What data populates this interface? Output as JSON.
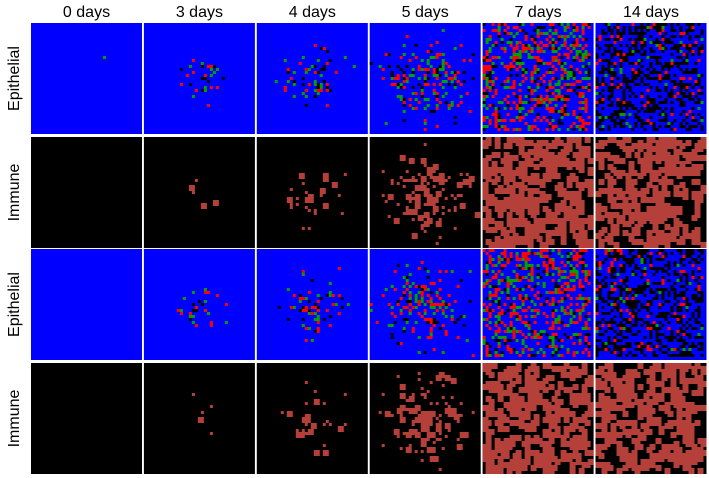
{
  "columns": [
    "0 days",
    "3 days",
    "4 days",
    "5 days",
    "7 days",
    "14 days"
  ],
  "rows": [
    "Epithelial",
    "Immune",
    "Epithelial",
    "Immune"
  ]
}
